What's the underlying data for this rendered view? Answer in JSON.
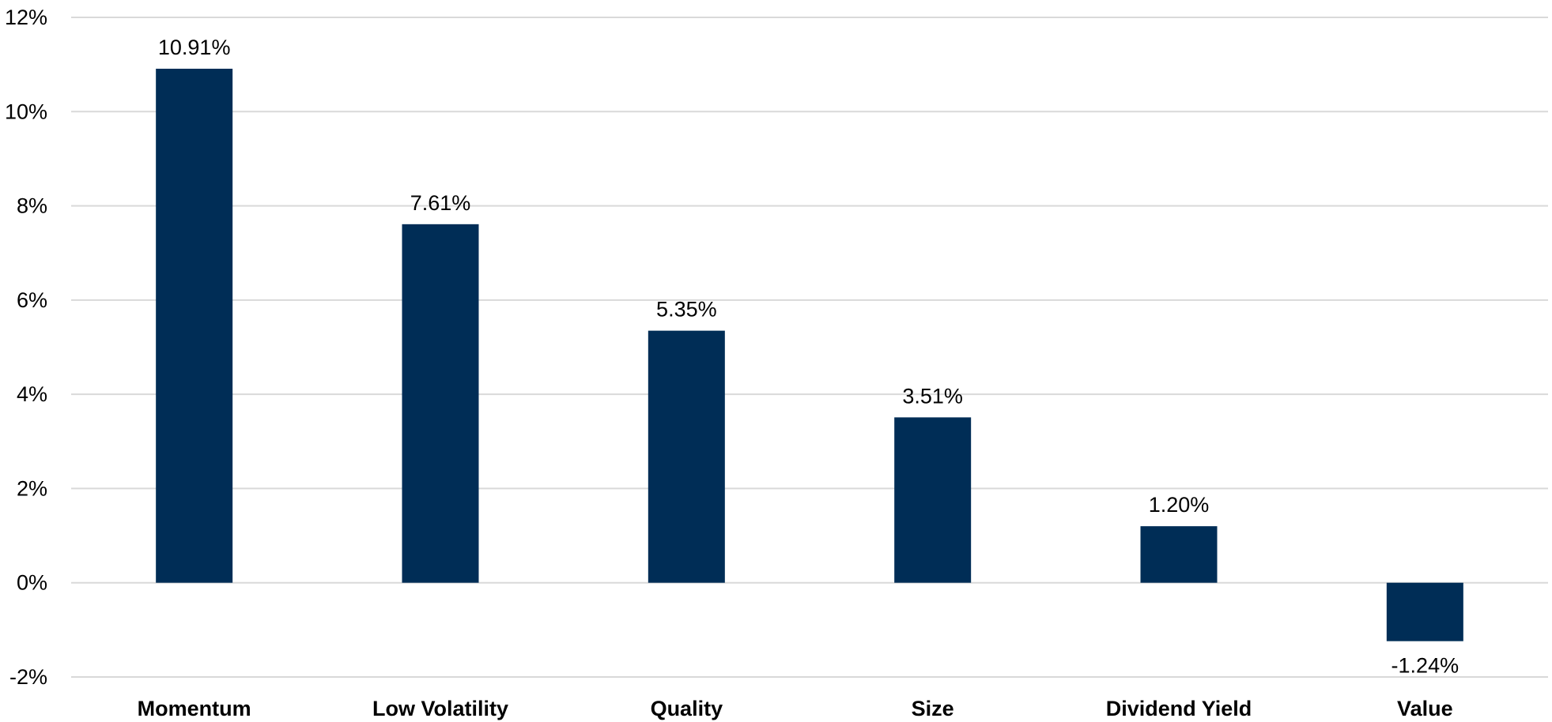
{
  "chart_data": {
    "type": "bar",
    "categories": [
      "Momentum",
      "Low Volatility",
      "Quality",
      "Size",
      "Dividend Yield",
      "Value"
    ],
    "values": [
      10.91,
      7.61,
      5.35,
      3.51,
      1.2,
      -1.24
    ],
    "data_labels": [
      "10.91%",
      "7.61%",
      "5.35%",
      "3.51%",
      "1.20%",
      "-1.24%"
    ],
    "yticks": [
      12,
      10,
      8,
      6,
      4,
      2,
      0,
      -2
    ],
    "ytick_labels": [
      "12%",
      "10%",
      "8%",
      "6%",
      "4%",
      "2%",
      "0%",
      "-2%"
    ],
    "ylim": [
      -2,
      12
    ],
    "grid": true,
    "legend": "none",
    "bar_color": "#002D56",
    "title": "",
    "xlabel": "",
    "ylabel": ""
  }
}
